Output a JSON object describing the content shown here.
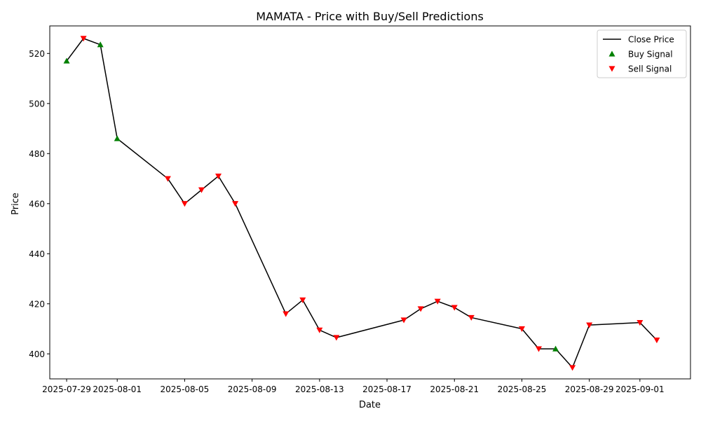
{
  "chart_data": {
    "type": "line",
    "title": "MAMATA - Price with Buy/Sell Predictions",
    "xlabel": "Date",
    "ylabel": "Price",
    "xlim": [
      "2025-07-28",
      "2025-09-04"
    ],
    "ylim": [
      390,
      531
    ],
    "x_ticks": [
      "2025-07-29",
      "2025-08-01",
      "2025-08-05",
      "2025-08-09",
      "2025-08-13",
      "2025-08-17",
      "2025-08-21",
      "2025-08-25",
      "2025-08-29",
      "2025-09-01"
    ],
    "y_ticks": [
      400,
      420,
      440,
      460,
      480,
      500,
      520
    ],
    "grid": false,
    "legend_position": "top-right",
    "legend": [
      "Close Price",
      "Buy Signal",
      "Sell Signal"
    ],
    "colors": {
      "line": "#000000",
      "buy": "#008000",
      "sell": "#ff0000"
    },
    "series": [
      {
        "name": "Close Price",
        "x": [
          "2025-07-29",
          "2025-07-30",
          "2025-07-31",
          "2025-08-01",
          "2025-08-04",
          "2025-08-05",
          "2025-08-06",
          "2025-08-07",
          "2025-08-08",
          "2025-08-11",
          "2025-08-12",
          "2025-08-13",
          "2025-08-14",
          "2025-08-18",
          "2025-08-19",
          "2025-08-20",
          "2025-08-21",
          "2025-08-22",
          "2025-08-25",
          "2025-08-26",
          "2025-08-27",
          "2025-08-28",
          "2025-08-29",
          "2025-09-01",
          "2025-09-02"
        ],
        "y": [
          517,
          526,
          523.5,
          486,
          470,
          460,
          465.5,
          471,
          460,
          416,
          421.5,
          409.5,
          406.5,
          413.5,
          418,
          421,
          418.5,
          414.5,
          410,
          402,
          402,
          394.5,
          411.5,
          412.5,
          405.5
        ]
      },
      {
        "name": "Buy Signal",
        "x": [
          "2025-07-29",
          "2025-07-31",
          "2025-08-01",
          "2025-08-27"
        ],
        "y": [
          517,
          523.5,
          486,
          402
        ]
      },
      {
        "name": "Sell Signal",
        "x": [
          "2025-07-30",
          "2025-08-04",
          "2025-08-05",
          "2025-08-06",
          "2025-08-07",
          "2025-08-08",
          "2025-08-11",
          "2025-08-12",
          "2025-08-13",
          "2025-08-14",
          "2025-08-18",
          "2025-08-19",
          "2025-08-20",
          "2025-08-21",
          "2025-08-22",
          "2025-08-25",
          "2025-08-26",
          "2025-08-28",
          "2025-08-29",
          "2025-09-01",
          "2025-09-02"
        ],
        "y": [
          526,
          470,
          460,
          465.5,
          471,
          460,
          416,
          421.5,
          409.5,
          406.5,
          413.5,
          418,
          421,
          418.5,
          414.5,
          410,
          402,
          394.5,
          411.5,
          412.5,
          405.5
        ]
      }
    ]
  }
}
